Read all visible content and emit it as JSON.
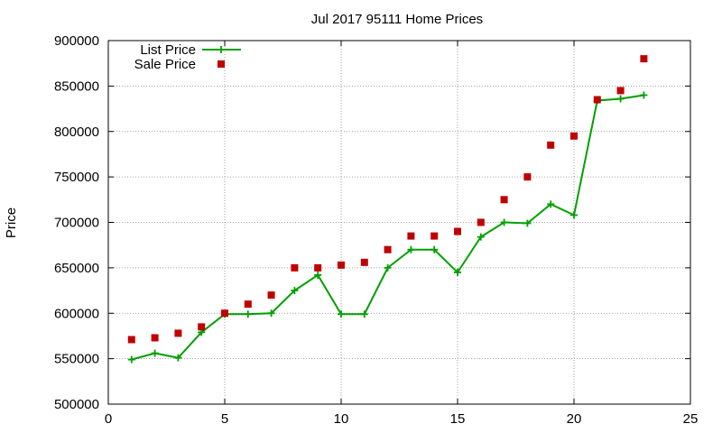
{
  "chart_data": {
    "type": "line",
    "title": "Jul 2017 95111 Home Prices",
    "xlabel": "",
    "ylabel": "Price",
    "xlim": [
      0,
      25
    ],
    "ylim": [
      500000,
      900000
    ],
    "xticks": [
      0,
      5,
      10,
      15,
      20,
      25
    ],
    "yticks": [
      500000,
      550000,
      600000,
      650000,
      700000,
      750000,
      800000,
      850000,
      900000
    ],
    "grid": true,
    "legend_position": "top-left",
    "series": [
      {
        "name": "List Price",
        "style": "line-with-plus-markers",
        "color": "#00a000",
        "x": [
          1,
          2,
          3,
          4,
          5,
          6,
          7,
          8,
          9,
          10,
          11,
          12,
          13,
          14,
          15,
          16,
          17,
          18,
          19,
          20,
          21,
          22,
          23
        ],
        "y": [
          549000,
          556000,
          551000,
          579000,
          599000,
          599000,
          600000,
          625000,
          642000,
          599000,
          599000,
          650000,
          670000,
          670000,
          645000,
          684000,
          700000,
          699000,
          720000,
          708000,
          834000,
          836000,
          840000
        ]
      },
      {
        "name": "Sale Price",
        "style": "square-markers",
        "color": "#c00000",
        "x": [
          1,
          2,
          3,
          4,
          5,
          6,
          7,
          8,
          9,
          10,
          11,
          12,
          13,
          14,
          15,
          16,
          17,
          18,
          19,
          20,
          21,
          22,
          23
        ],
        "y": [
          571000,
          573000,
          578000,
          585000,
          600000,
          610000,
          620000,
          650000,
          650000,
          653000,
          656000,
          670000,
          685000,
          685000,
          690000,
          700000,
          725000,
          750000,
          785000,
          795000,
          835000,
          845000,
          880000
        ]
      }
    ]
  }
}
